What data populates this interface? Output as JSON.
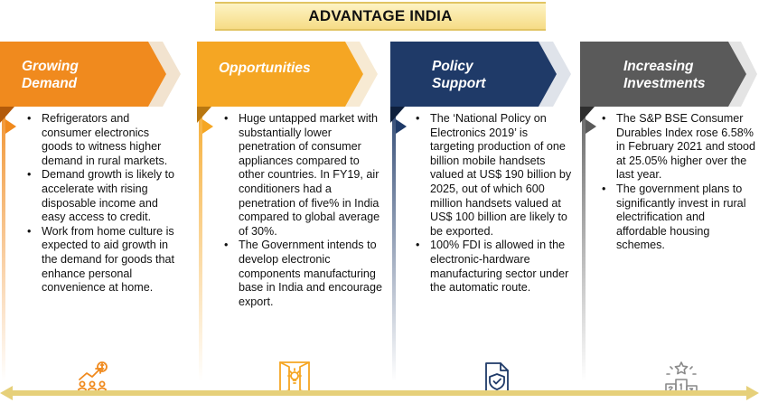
{
  "title": "ADVANTAGE INDIA",
  "columns": [
    {
      "heading_line1": "Growing",
      "heading_line2": "Demand",
      "color": "#f08a1e",
      "bullets": [
        "Refrigerators and consumer electronics goods to witness higher demand in rural markets.",
        "Demand growth is likely to accelerate with rising disposable income and easy access to credit.",
        "Work from home culture is expected to aid growth in the demand for goods that enhance personal convenience at home."
      ],
      "icon": "growth-people-icon"
    },
    {
      "heading_line1": "Opportunities",
      "heading_line2": "",
      "color": "#f5a623",
      "bullets": [
        "Huge untapped market with substantially lower penetration of consumer appliances compared to other countries. In FY19, air conditioners had a penetration of five% in India compared to global average of 30%.",
        "The Government intends to develop electronic components manufacturing base in India and encourage export."
      ],
      "icon": "door-lightbulb-icon"
    },
    {
      "heading_line1": "Policy",
      "heading_line2": "Support",
      "color": "#1f3a68",
      "bullets": [
        "The ‘National Policy on Electronics 2019’ is targeting production of one billion mobile handsets valued at US$ 190 billion by 2025, out of which 600 million handsets valued at US$ 100 billion are likely to be exported.",
        "100% FDI is allowed in the electronic-hardware manufacturing sector under the automatic route."
      ],
      "icon": "policy-document-icon"
    },
    {
      "heading_line1": "Increasing",
      "heading_line2": "Investments",
      "color": "#5a5a5a",
      "bullets": [
        "The S&P BSE Consumer Durables Index rose 6.58% in February 2021 and stood at 25.05% higher over the last year.",
        "The government plans to significantly invest in rural electrification and affordable housing schemes."
      ],
      "icon": "podium-icon"
    }
  ]
}
